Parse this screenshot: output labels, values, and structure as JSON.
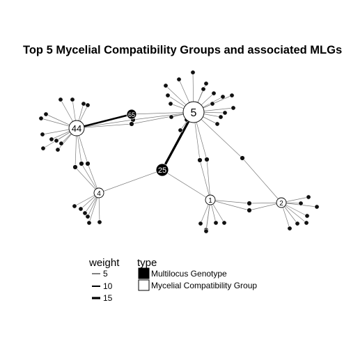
{
  "title": "Top 5 Mycelial Compatibility Groups and associated MLGs",
  "legend": {
    "weight_title": "weight",
    "weight_items": [
      {
        "label": "5",
        "value": 5
      },
      {
        "label": "10",
        "value": 10
      },
      {
        "label": "15",
        "value": 15
      }
    ],
    "type_title": "type",
    "type_items": [
      {
        "label": "Multilocus Genotype",
        "fill": "#000000"
      },
      {
        "label": "Mycelial Compatibility Group",
        "fill": "#ffffff"
      }
    ]
  },
  "colors": {
    "mlg": "#000000",
    "mcg": "#ffffff",
    "edge": "#7a7a7a",
    "strong_edge": "#000000"
  },
  "mcg_nodes": [
    {
      "label": "5"
    },
    {
      "label": "44"
    },
    {
      "label": "4"
    },
    {
      "label": "1"
    },
    {
      "label": "2"
    }
  ],
  "mlg_labeled_nodes": [
    {
      "label": "25"
    },
    {
      "label": "65"
    }
  ],
  "strong_edges": [
    {
      "from": "44",
      "to": "65",
      "weight": 12
    },
    {
      "from": "5",
      "to": "25",
      "weight": 15
    }
  ]
}
